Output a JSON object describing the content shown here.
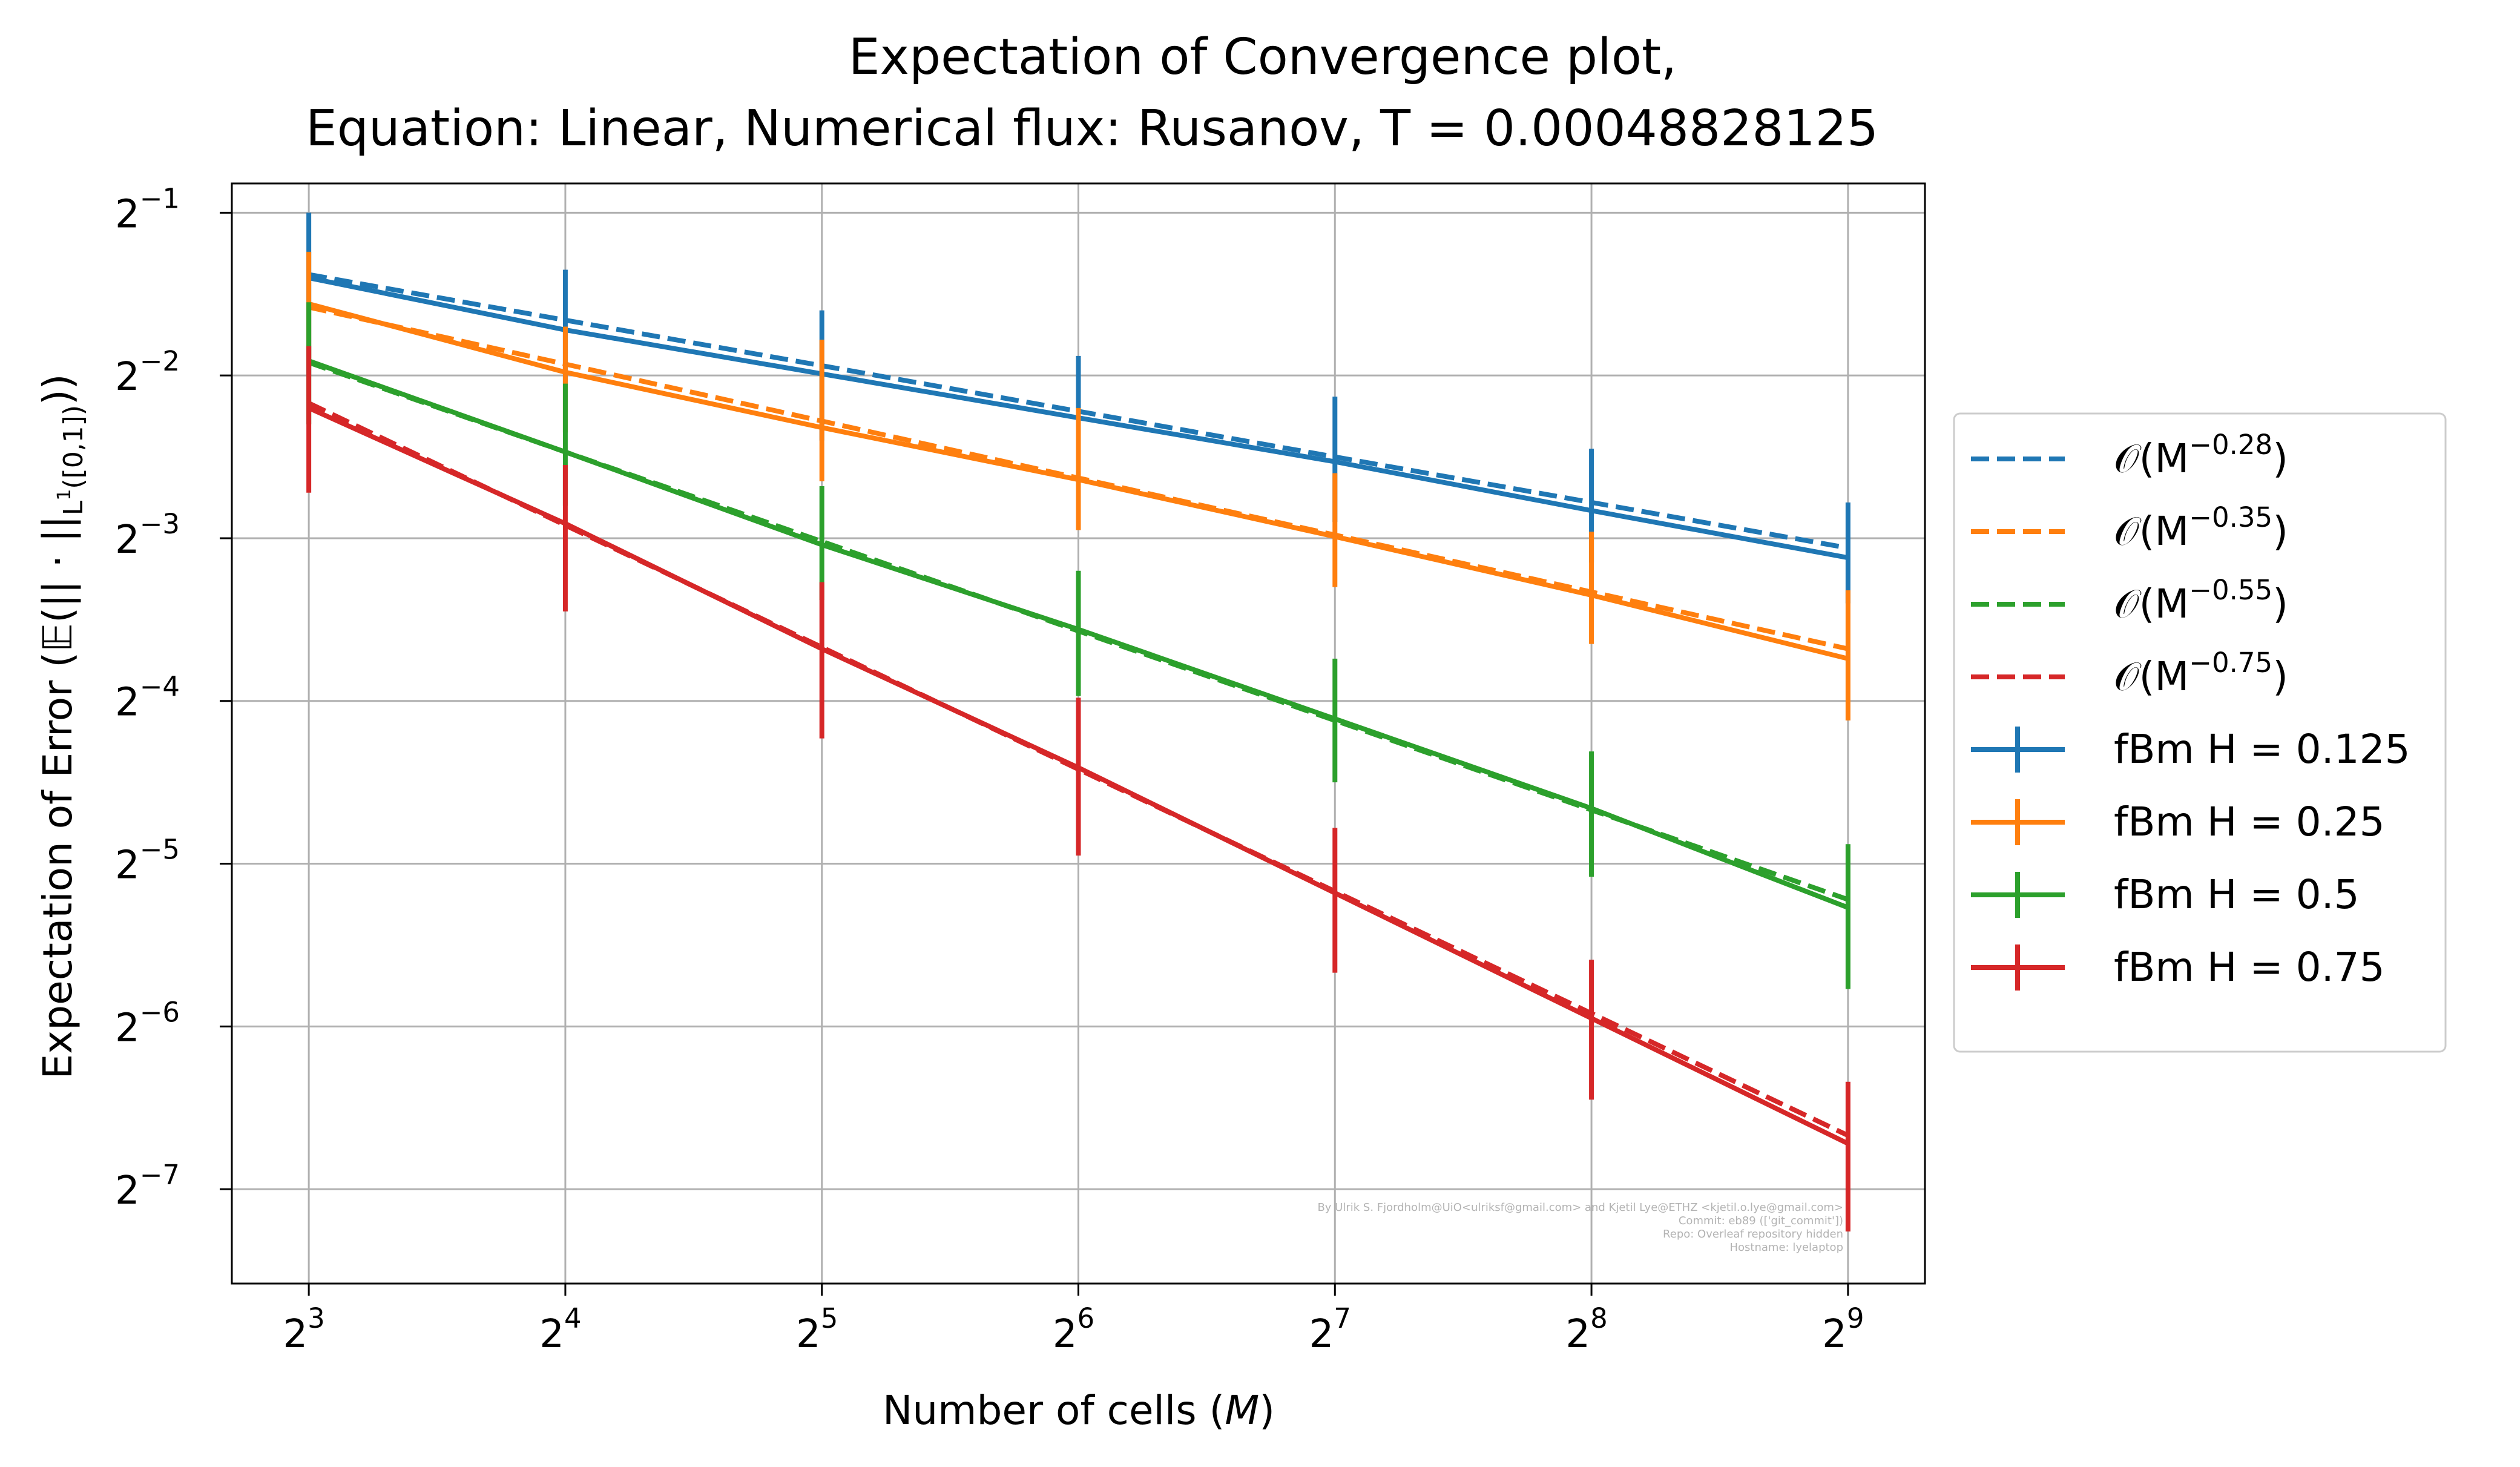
{
  "chart_data": {
    "type": "line",
    "title_line1": "Expectation of Convergence plot,",
    "title_line2": "Equation: Linear, Numerical flux: Rusanov, T = 0.00048828125",
    "xlabel": "Number of cells (M)",
    "ylabel": "Expectation of Error (𝔼(|| · ||L¹([0,1])))",
    "xscale": "log2",
    "yscale": "log2",
    "x_exponents": [
      3,
      4,
      5,
      6,
      7,
      8,
      9
    ],
    "y_exponents": [
      -1,
      -2,
      -3,
      -4,
      -5,
      -6,
      -7
    ],
    "x": [
      8,
      16,
      32,
      64,
      128,
      256,
      512
    ],
    "xlim_log2": [
      2.7,
      9.3
    ],
    "ylim_log2": [
      -7.58,
      -0.82
    ],
    "grid": true,
    "legend_position": "outside right",
    "series": [
      {
        "name": "fBm H = 0.125",
        "color": "#1f77b4",
        "log2_values": [
          -1.4,
          -1.72,
          -1.99,
          -2.26,
          -2.53,
          -2.83,
          -3.12
        ],
        "log2_err_low": [
          -1.0,
          -1.35,
          -1.6,
          -1.88,
          -2.13,
          -2.45,
          -2.78
        ],
        "log2_err_high": [
          -2.0,
          -2.05,
          -2.4,
          -2.6,
          -2.9,
          -3.15,
          -3.4
        ]
      },
      {
        "name": "fBm H = 0.25",
        "color": "#ff7f0e",
        "log2_values": [
          -1.56,
          -1.98,
          -2.32,
          -2.64,
          -2.99,
          -3.35,
          -3.74
        ],
        "log2_err_low": [
          -1.24,
          -1.7,
          -1.78,
          -2.2,
          -2.6,
          -2.96,
          -3.32
        ],
        "log2_err_high": [
          -1.95,
          -2.35,
          -2.65,
          -2.95,
          -3.3,
          -3.65,
          -4.12
        ]
      },
      {
        "name": "fBm H = 0.5",
        "color": "#2ca02c",
        "log2_values": [
          -1.91,
          -2.47,
          -3.04,
          -3.56,
          -4.11,
          -4.66,
          -5.27
        ],
        "log2_err_low": [
          -1.55,
          -2.05,
          -2.68,
          -3.2,
          -3.74,
          -4.31,
          -4.88
        ],
        "log2_err_high": [
          -2.3,
          -2.8,
          -3.38,
          -3.97,
          -4.5,
          -5.08,
          -5.77
        ]
      },
      {
        "name": "fBm H = 0.75",
        "color": "#d62728",
        "log2_values": [
          -2.2,
          -2.91,
          -3.68,
          -4.41,
          -5.18,
          -5.95,
          -6.72
        ],
        "log2_err_low": [
          -1.82,
          -2.55,
          -3.27,
          -3.98,
          -4.78,
          -5.59,
          -6.34
        ],
        "log2_err_high": [
          -2.72,
          -3.45,
          -4.23,
          -4.95,
          -5.67,
          -6.45,
          -7.26
        ]
      }
    ],
    "reference_lines": [
      {
        "name": "𝒪(M^-0.28)",
        "label_base": "𝒪(M",
        "label_exp": "−0.28",
        "label_close": ")",
        "color": "#1f77b4",
        "log2_values": [
          -1.38,
          -1.66,
          -1.94,
          -2.22,
          -2.5,
          -2.78,
          -3.06
        ]
      },
      {
        "name": "𝒪(M^-0.35)",
        "label_base": "𝒪(M",
        "label_exp": "−0.35",
        "label_close": ")",
        "color": "#ff7f0e",
        "log2_values": [
          -1.58,
          -1.93,
          -2.28,
          -2.63,
          -2.98,
          -3.33,
          -3.68
        ]
      },
      {
        "name": "𝒪(M^-0.55)",
        "label_base": "𝒪(M",
        "label_exp": "−0.55",
        "label_close": ")",
        "color": "#2ca02c",
        "log2_values": [
          -1.92,
          -2.47,
          -3.02,
          -3.57,
          -4.12,
          -4.67,
          -5.22
        ]
      },
      {
        "name": "𝒪(M^-0.75)",
        "label_base": "𝒪(M",
        "label_exp": "−0.75",
        "label_close": ")",
        "color": "#d62728",
        "log2_values": [
          -2.17,
          -2.92,
          -3.67,
          -4.42,
          -5.17,
          -5.92,
          -6.67
        ]
      }
    ],
    "legend_entries": [
      {
        "base": "𝒪(M",
        "sup": "−0.28",
        "close": ")",
        "style": "dashed",
        "color": "#1f77b4"
      },
      {
        "base": "𝒪(M",
        "sup": "−0.35",
        "close": ")",
        "style": "dashed",
        "color": "#ff7f0e"
      },
      {
        "base": "𝒪(M",
        "sup": "−0.55",
        "close": ")",
        "style": "dashed",
        "color": "#2ca02c"
      },
      {
        "base": "𝒪(M",
        "sup": "−0.75",
        "close": ")",
        "style": "dashed",
        "color": "#d62728"
      },
      {
        "base": "fBm H = 0.125",
        "sup": "",
        "close": "",
        "style": "errorbar",
        "color": "#1f77b4"
      },
      {
        "base": "fBm H = 0.25",
        "sup": "",
        "close": "",
        "style": "errorbar",
        "color": "#ff7f0e"
      },
      {
        "base": "fBm H = 0.5",
        "sup": "",
        "close": "",
        "style": "errorbar",
        "color": "#2ca02c"
      },
      {
        "base": "fBm H = 0.75",
        "sup": "",
        "close": "",
        "style": "errorbar",
        "color": "#d62728"
      }
    ],
    "watermark_lines": [
      "By Ulrik S. Fjordholm@UiO<ulriksf@gmail.com> and Kjetil Lye@ETHZ <kjetil.o.lye@gmail.com>",
      "Commit: eb89 (['git_commit'])",
      "Repo: Overleaf repository hidden",
      "Hostname: lyelaptop"
    ]
  }
}
